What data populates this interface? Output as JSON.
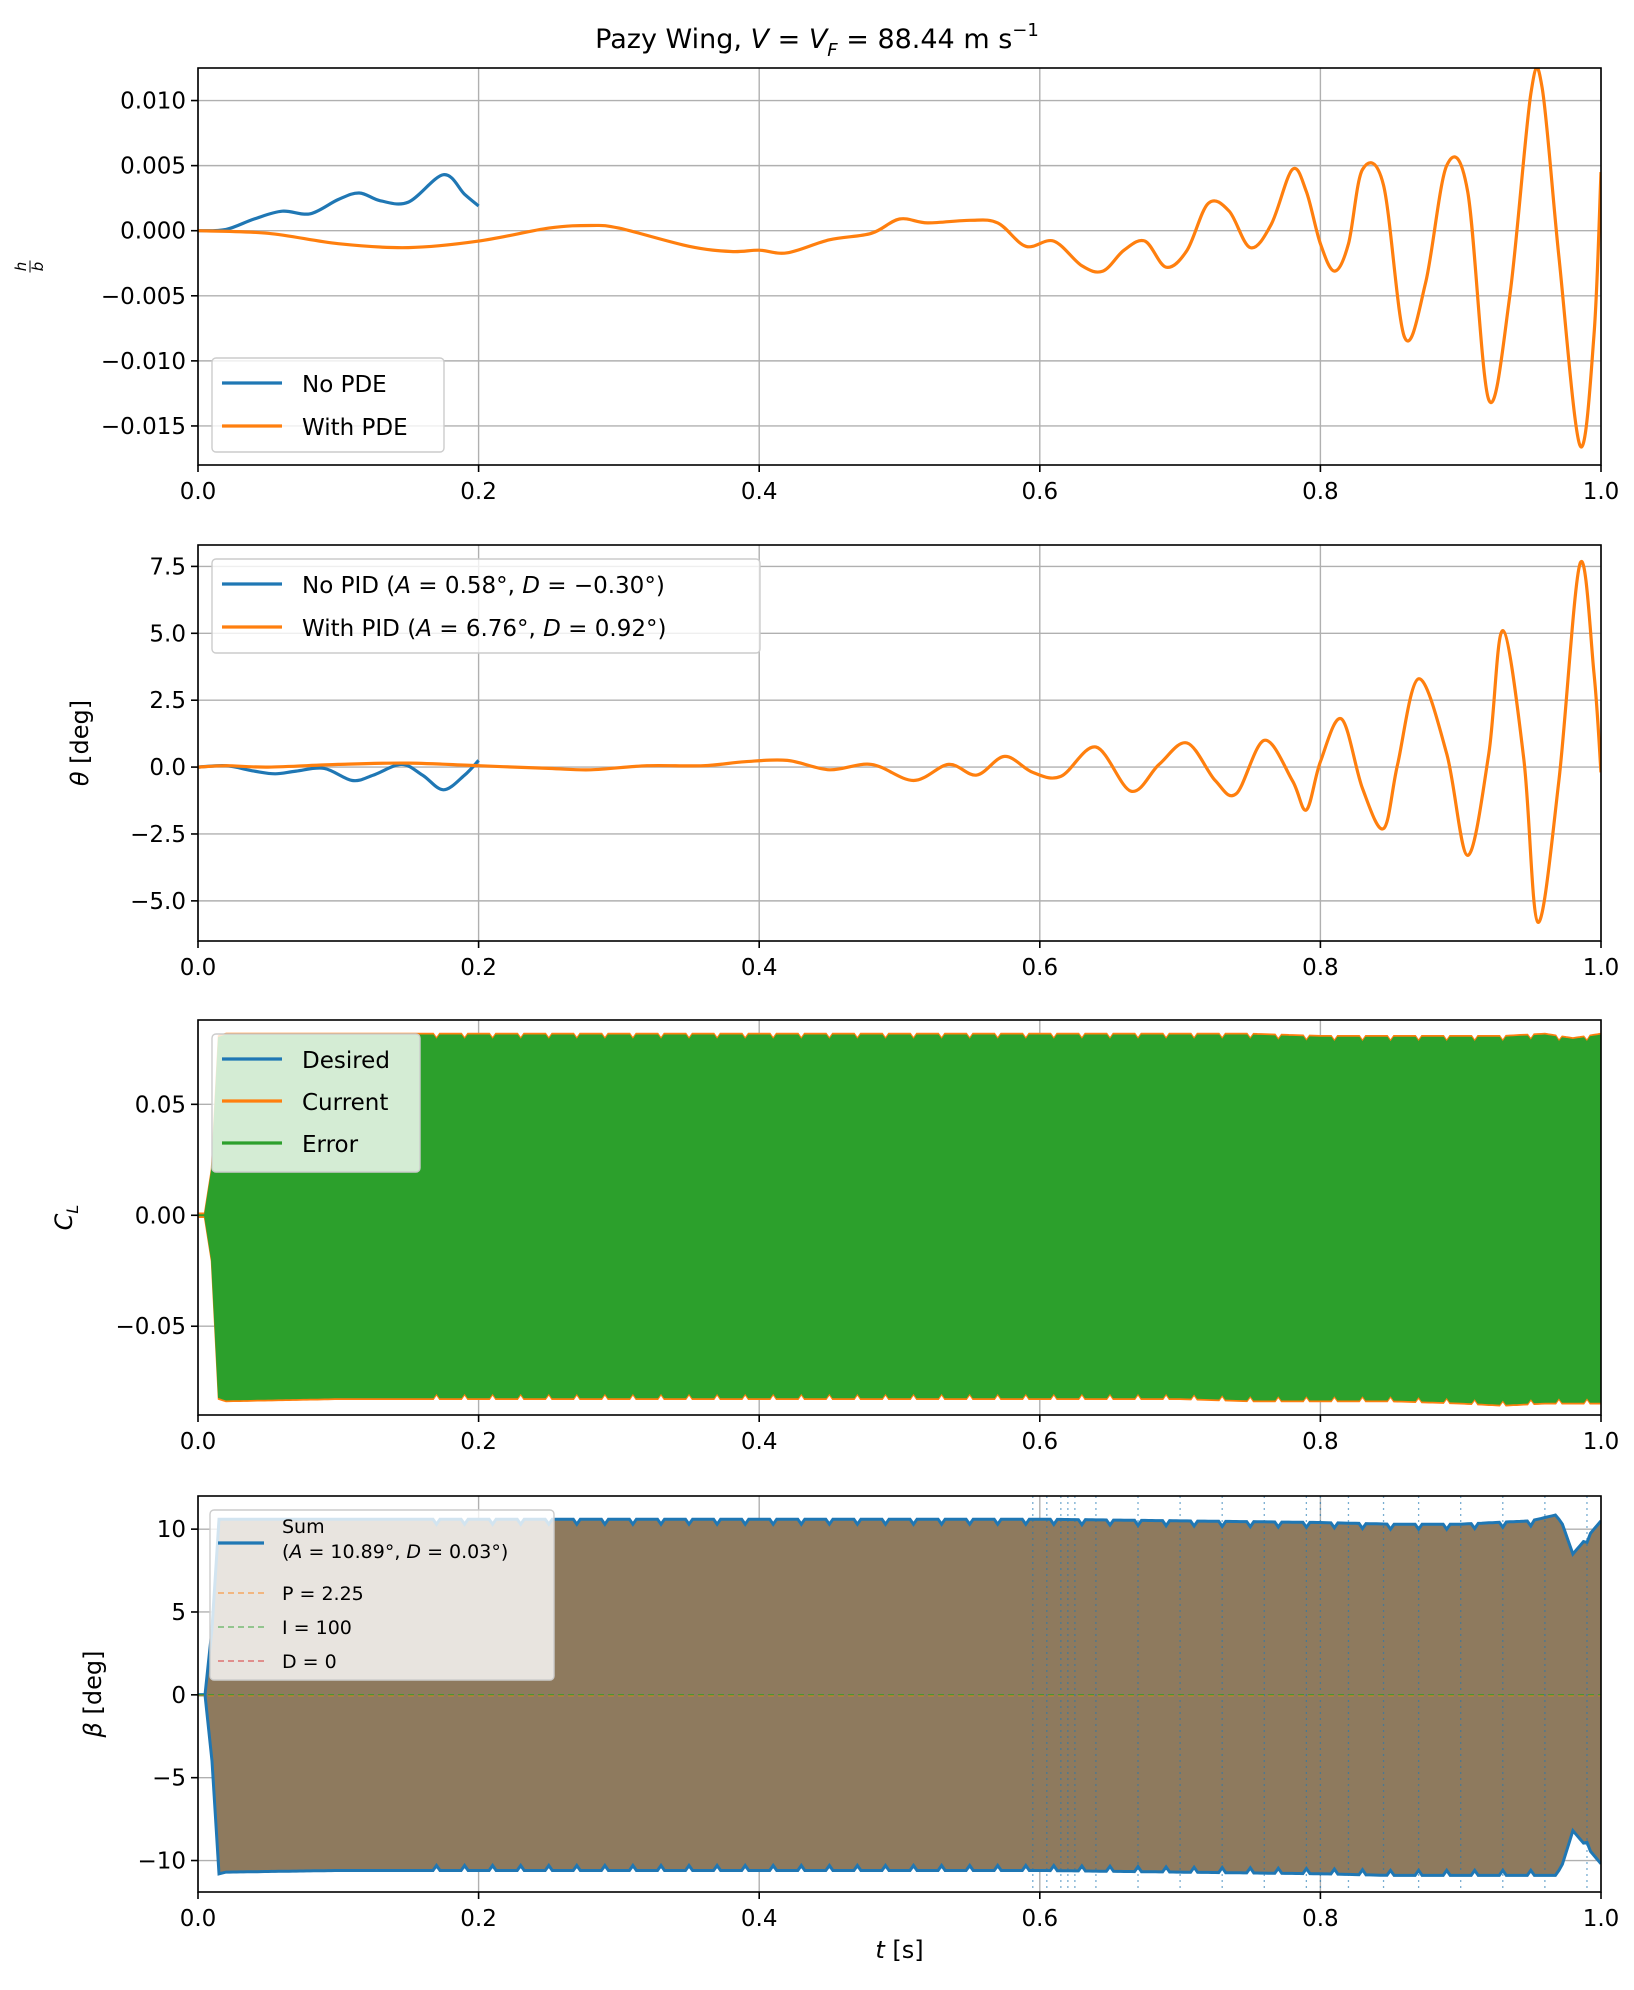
{
  "title": "Pazy Wing, V = V_F = 88.44 m s⁻¹",
  "title_parts": {
    "lead": "Pazy Wing, ",
    "v": "V",
    "eq1": " = ",
    "vf": "V",
    "vf_sub": "F",
    "eq2": " = 88.44 m s",
    "exp": "−1"
  },
  "colors": {
    "blue": "#1f77b4",
    "orange": "#ff7f0e",
    "green": "#2ca02c",
    "red": "#d62728",
    "grid": "#b0b0b0",
    "brown": "#8e7a5e"
  },
  "chart_data": [
    {
      "type": "line",
      "id": "heave",
      "ylabel": "h/b",
      "ylabel_num": "h",
      "ylabel_den": "b",
      "xlim": [
        0,
        1.0
      ],
      "ylim": [
        -0.018,
        0.0125
      ],
      "yticks": [
        0.01,
        0.005,
        0.0,
        -0.005,
        -0.01,
        -0.015
      ],
      "ytick_labels": [
        "0.010",
        "0.005",
        "0.000",
        "−0.005",
        "−0.010",
        "−0.015"
      ],
      "xticks": [
        0.0,
        0.2,
        0.4,
        0.6,
        0.8,
        1.0
      ],
      "xtick_labels": [
        "0.0",
        "0.2",
        "0.4",
        "0.6",
        "0.8",
        "1.0"
      ],
      "grid": true,
      "legend_position": "lower-left",
      "series": [
        {
          "name": "No PDE",
          "color": "#1f77b4",
          "x": [
            0,
            0.02,
            0.04,
            0.06,
            0.08,
            0.1,
            0.115,
            0.13,
            0.15,
            0.175,
            0.19,
            0.2
          ],
          "y": [
            0,
            0.0001,
            0.0009,
            0.0015,
            0.0013,
            0.0024,
            0.0029,
            0.0023,
            0.0022,
            0.0043,
            0.0028,
            0.0019
          ]
        },
        {
          "name": "With PDE",
          "color": "#ff7f0e",
          "x": [
            0,
            0.05,
            0.1,
            0.15,
            0.2,
            0.25,
            0.28,
            0.3,
            0.35,
            0.38,
            0.4,
            0.42,
            0.45,
            0.48,
            0.5,
            0.52,
            0.55,
            0.57,
            0.59,
            0.61,
            0.63,
            0.645,
            0.66,
            0.675,
            0.69,
            0.705,
            0.72,
            0.735,
            0.75,
            0.765,
            0.78,
            0.79,
            0.8,
            0.81,
            0.82,
            0.83,
            0.845,
            0.86,
            0.875,
            0.89,
            0.905,
            0.92,
            0.935,
            0.95,
            0.958,
            0.97,
            0.985,
            0.995,
            1.0
          ],
          "y": [
            0,
            -0.0002,
            -0.001,
            -0.0013,
            -0.0008,
            0.0002,
            0.0004,
            0.0002,
            -0.0012,
            -0.0016,
            -0.0015,
            -0.0017,
            -0.0007,
            -0.0002,
            0.0009,
            0.0006,
            0.0008,
            0.0006,
            -0.0012,
            -0.0008,
            -0.0027,
            -0.0031,
            -0.0015,
            -0.0008,
            -0.0028,
            -0.0015,
            0.0021,
            0.0015,
            -0.0013,
            0.0005,
            0.0047,
            0.003,
            -0.001,
            -0.0031,
            -0.001,
            0.0047,
            0.0035,
            -0.0082,
            -0.004,
            0.005,
            0.003,
            -0.013,
            -0.005,
            0.0105,
            0.011,
            -0.002,
            -0.0165,
            -0.008,
            0.0045
          ]
        }
      ]
    },
    {
      "type": "line",
      "id": "pitch",
      "ylabel": "θ [deg]",
      "xlim": [
        0,
        1.0
      ],
      "ylim": [
        -6.5,
        8.3
      ],
      "yticks": [
        7.5,
        5.0,
        2.5,
        0.0,
        -2.5,
        -5.0
      ],
      "ytick_labels": [
        "7.5",
        "5.0",
        "2.5",
        "0.0",
        "−2.5",
        "−5.0"
      ],
      "xticks": [
        0.0,
        0.2,
        0.4,
        0.6,
        0.8,
        1.0
      ],
      "xtick_labels": [
        "0.0",
        "0.2",
        "0.4",
        "0.6",
        "0.8",
        "1.0"
      ],
      "grid": true,
      "legend_position": "top-left",
      "series": [
        {
          "name": "No PID (A = 0.58°, D = −0.30°)",
          "color": "#1f77b4",
          "x": [
            0,
            0.02,
            0.04,
            0.055,
            0.07,
            0.09,
            0.11,
            0.125,
            0.145,
            0.16,
            0.175,
            0.19,
            0.2
          ],
          "y": [
            0,
            0.05,
            -0.15,
            -0.25,
            -0.15,
            -0.05,
            -0.5,
            -0.3,
            0.1,
            -0.3,
            -0.85,
            -0.3,
            0.25
          ]
        },
        {
          "name": "With PID (A = 6.76°, D = 0.92°)",
          "color": "#ff7f0e",
          "x": [
            0,
            0.02,
            0.05,
            0.1,
            0.15,
            0.2,
            0.25,
            0.28,
            0.32,
            0.36,
            0.39,
            0.42,
            0.45,
            0.48,
            0.51,
            0.535,
            0.555,
            0.575,
            0.595,
            0.615,
            0.64,
            0.665,
            0.685,
            0.705,
            0.725,
            0.74,
            0.76,
            0.78,
            0.79,
            0.8,
            0.815,
            0.83,
            0.845,
            0.855,
            0.87,
            0.89,
            0.905,
            0.92,
            0.93,
            0.945,
            0.955,
            0.97,
            0.985,
            0.995,
            1.0
          ],
          "y": [
            0,
            0.05,
            0,
            0.1,
            0.15,
            0.05,
            -0.05,
            -0.1,
            0.05,
            0.05,
            0.2,
            0.25,
            -0.1,
            0.1,
            -0.5,
            0.1,
            -0.3,
            0.4,
            -0.2,
            -0.35,
            0.75,
            -0.9,
            0.1,
            0.9,
            -0.5,
            -1.0,
            1.0,
            -0.5,
            -1.6,
            0.2,
            1.8,
            -0.8,
            -2.3,
            0.1,
            3.3,
            0.5,
            -3.3,
            0.5,
            5.1,
            0.3,
            -5.8,
            -0.5,
            7.6,
            3.5,
            -0.2
          ]
        }
      ]
    },
    {
      "type": "area",
      "id": "lift",
      "ylabel": "C_L",
      "xlim": [
        0,
        1.0
      ],
      "ylim": [
        -0.09,
        0.088
      ],
      "yticks": [
        0.05,
        0.0,
        -0.05
      ],
      "ytick_labels": [
        "0.05",
        "0.00",
        "−0.05"
      ],
      "xticks": [
        0.0,
        0.2,
        0.4,
        0.6,
        0.8,
        1.0
      ],
      "xtick_labels": [
        "0.0",
        "0.2",
        "0.4",
        "0.6",
        "0.8",
        "1.0"
      ],
      "grid": true,
      "legend_position": "top-left",
      "series": [
        {
          "name": "Desired",
          "color": "#1f77b4"
        },
        {
          "name": "Current",
          "color": "#ff7f0e"
        },
        {
          "name": "Error",
          "color": "#2ca02c"
        }
      ],
      "envelope_x": [
        0,
        0.005,
        0.01,
        0.015,
        0.02,
        0.1,
        0.3,
        0.5,
        0.6,
        0.65,
        0.7,
        0.75,
        0.8,
        0.85,
        0.9,
        0.93,
        0.96,
        0.98,
        1.0
      ],
      "envelope_upper": [
        0,
        0,
        0.02,
        0.08,
        0.081,
        0.081,
        0.081,
        0.081,
        0.081,
        0.081,
        0.081,
        0.081,
        0.08,
        0.08,
        0.08,
        0.08,
        0.081,
        0.079,
        0.081
      ],
      "envelope_lower": [
        0,
        0,
        -0.02,
        -0.082,
        -0.083,
        -0.082,
        -0.082,
        -0.082,
        -0.082,
        -0.082,
        -0.082,
        -0.083,
        -0.083,
        -0.083,
        -0.084,
        -0.085,
        -0.084,
        -0.084,
        -0.084
      ]
    },
    {
      "type": "area",
      "id": "beta",
      "ylabel": "β [deg]",
      "xlabel": "t [s]",
      "xlim": [
        0,
        1.0
      ],
      "ylim": [
        -11.9,
        12.0
      ],
      "yticks": [
        10,
        5,
        0,
        -5,
        -10
      ],
      "ytick_labels": [
        "10",
        "5",
        "0",
        "−5",
        "−10"
      ],
      "xticks": [
        0.0,
        0.2,
        0.4,
        0.6,
        0.8,
        1.0
      ],
      "xtick_labels": [
        "0.0",
        "0.2",
        "0.4",
        "0.6",
        "0.8",
        "1.0"
      ],
      "grid": true,
      "legend_position": "top-left",
      "series": [
        {
          "name": "Sum",
          "sub": "(A = 10.89°, D = 0.03°)",
          "color": "#1f77b4"
        },
        {
          "name": "P = 2.25",
          "color": "#ff7f0e"
        },
        {
          "name": "I = 100",
          "color": "#2ca02c"
        },
        {
          "name": "D = 0",
          "color": "#d62728"
        }
      ],
      "envelope_x": [
        0,
        0.005,
        0.01,
        0.015,
        0.02,
        0.1,
        0.3,
        0.5,
        0.6,
        0.7,
        0.8,
        0.85,
        0.9,
        0.95,
        0.97,
        0.98,
        1.0
      ],
      "envelope_upper": [
        0,
        0,
        4,
        10.6,
        10.6,
        10.6,
        10.6,
        10.6,
        10.6,
        10.5,
        10.4,
        10.3,
        10.3,
        10.5,
        10.9,
        8.5,
        10.5
      ],
      "envelope_lower": [
        0,
        0,
        -4,
        -10.8,
        -10.7,
        -10.6,
        -10.6,
        -10.6,
        -10.6,
        -10.7,
        -10.8,
        -10.9,
        -10.9,
        -10.9,
        -10.9,
        -8.2,
        -10.2
      ],
      "vlines_x": [
        0.595,
        0.605,
        0.615,
        0.62,
        0.625,
        0.64,
        0.67,
        0.7,
        0.73,
        0.76,
        0.79,
        0.8,
        0.82,
        0.845,
        0.87,
        0.9,
        0.93,
        0.96,
        0.99
      ]
    }
  ]
}
